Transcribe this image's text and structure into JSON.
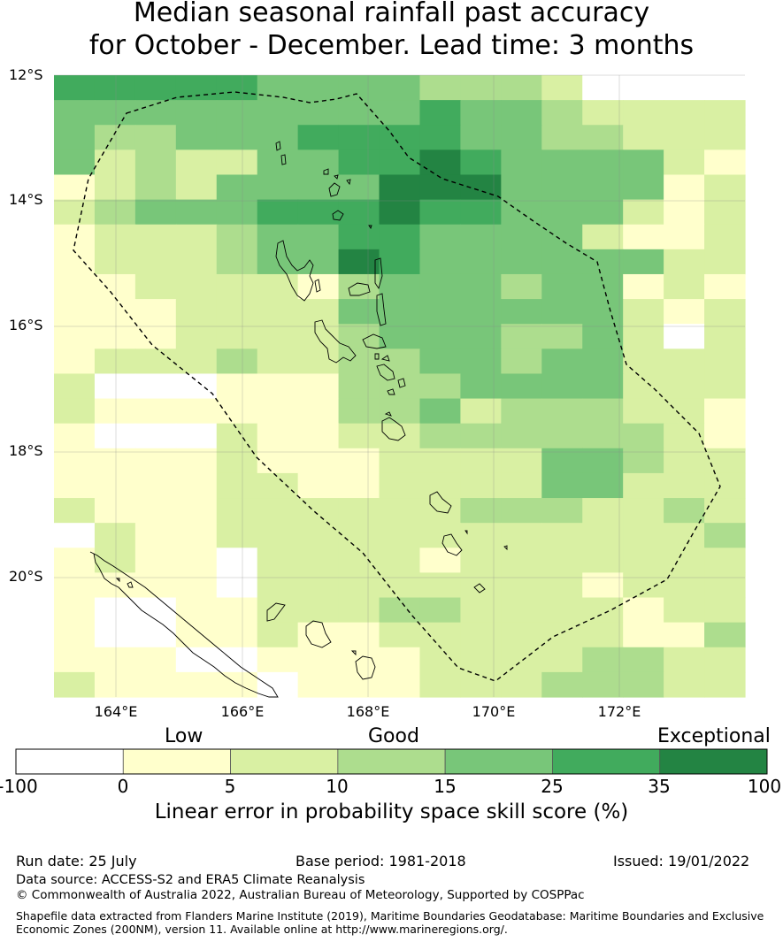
{
  "title": {
    "line1": "Median seasonal rainfall past accuracy",
    "line2": "for October - December. Lead time: 3 months"
  },
  "map": {
    "lat_labels": [
      "12°S",
      "14°S",
      "16°S",
      "18°S",
      "20°S"
    ],
    "lon_labels": [
      "164°E",
      "166°E",
      "168°E",
      "170°E",
      "172°E"
    ],
    "boundary_style": "dashed",
    "grid_colors": [
      "#ffffff",
      "#ffffcc",
      "#d9f0a3",
      "#addd8e",
      "#78c679",
      "#41ab5d",
      "#238443"
    ],
    "grid": [
      "55555444433320000",
      "44444444454432222",
      "43344455554433222",
      "42322445565444421",
      "12324444666444412",
      "23444555655444212",
      "12223445544442112",
      "12223446544444422",
      "11222213444344121",
      "11122224444444212",
      "11122223444334202",
      "12223223344344222",
      "20001113334444222",
      "21111113342333221",
      "10002112233333321",
      "11112111222244322",
      "11112211222244222",
      "21112222223332232",
      "02112222222222223",
      "12110222212222222",
      "11110222222221222",
      "10011222332222122",
      "10011211222222113",
      "11100111122223322",
      "21111011122233322"
    ]
  },
  "colorbar": {
    "categories": [
      "Low",
      "Good",
      "Exceptional"
    ],
    "ticks": [
      "-100",
      "0",
      "5",
      "10",
      "15",
      "25",
      "35",
      "100"
    ],
    "colors": [
      "#ffffff",
      "#ffffcc",
      "#d9f0a3",
      "#addd8e",
      "#78c679",
      "#41ab5d",
      "#238443"
    ],
    "label": "Linear error in probability space skill score (%)"
  },
  "footer": {
    "run_date": "Run date: 25 July",
    "base_period": "Base period: 1981-2018",
    "issued": "Issued: 19/01/2022",
    "data_source": "Data source: ACCESS-S2 and ERA5 Climate Reanalysis",
    "copyright": "© Commonwealth of Australia 2022, Australian Bureau of Meteorology, Supported by COSPPac",
    "shapefile_line1": "Shapefile data extracted from Flanders Marine Institute (2019), Maritime Boundaries Geodatabase: Maritime Boundaries and Exclusive",
    "shapefile_line2": "Economic Zones (200NM), version 11. Available online at http://www.marineregions.org/."
  }
}
